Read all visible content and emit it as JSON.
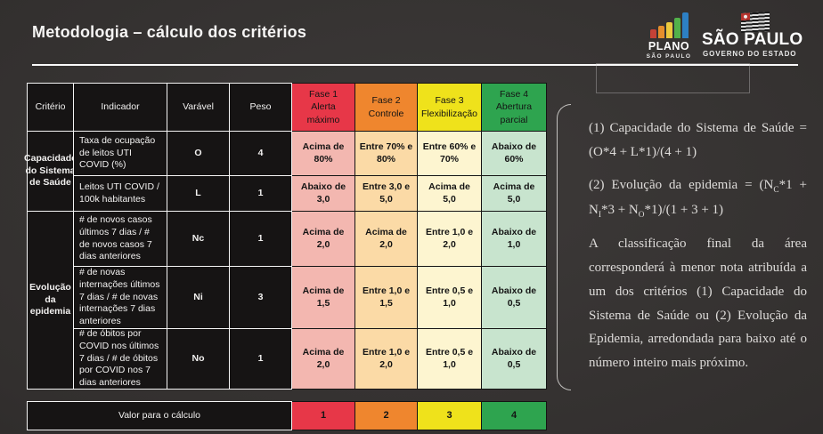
{
  "slide": {
    "title": "Metodologia – cálculo dos critérios"
  },
  "logos": {
    "plano": {
      "icon": "bar-chart-icon",
      "bar_colors": [
        "#c54237",
        "#e58e2c",
        "#ecc93d",
        "#52b14a",
        "#2d80c4"
      ],
      "line1": "PLANO",
      "line2": "SÃO PAULO"
    },
    "governo": {
      "icon": "sp-flag-icon",
      "line1": "SÃO PAULO",
      "line2": "GOVERNO DO ESTADO"
    }
  },
  "table": {
    "headers": {
      "criterio": "Critério",
      "indicador": "Indicador",
      "varavel": "Varável",
      "peso": "Peso"
    },
    "phases": [
      {
        "line1": "Fase 1",
        "line2": "Alerta máximo",
        "color": "#e73748",
        "tint": "#f3b7b0"
      },
      {
        "line1": "Fase 2",
        "line2": "Controle",
        "color": "#ef862e",
        "tint": "#fbdaa6"
      },
      {
        "line1": "Fase 3",
        "line2": "Flexibilização",
        "color": "#efe21b",
        "tint": "#fdf5d0"
      },
      {
        "line1": "Fase 4",
        "line2": "Abertura parcial",
        "color": "#2ea44f",
        "tint": "#c8e4ce"
      }
    ],
    "groups": [
      {
        "label": "Capacidade do Sistema de Saúde"
      },
      {
        "label": "Evolução da epidemia"
      }
    ],
    "rows": [
      {
        "indicator": "Taxa de ocupação de leitos UTI COVID (%)",
        "variable": "O",
        "weight": "4",
        "values": [
          "Acima de 80%",
          "Entre 70% e 80%",
          "Entre 60% e 70%",
          "Abaixo de 60%"
        ]
      },
      {
        "indicator": "Leitos UTI COVID / 100k habitantes",
        "variable": "L",
        "weight": "1",
        "values": [
          "Abaixo de 3,0",
          "Entre 3,0 e 5,0",
          "Acima de 5,0",
          "Acima de 5,0"
        ]
      },
      {
        "indicator": "# de novos casos últimos 7 dias / # de novos casos 7 dias anteriores",
        "variable": "Nc",
        "weight": "1",
        "values": [
          "Acima de 2,0",
          "Acima de 2,0",
          "Entre 1,0 e 2,0",
          "Abaixo de 1,0"
        ]
      },
      {
        "indicator": "# de novas internações últimos 7 dias / # de novas internações 7 dias anteriores",
        "variable": "Ni",
        "weight": "3",
        "values": [
          "Acima de 1,5",
          "Entre 1,0 e 1,5",
          "Entre 0,5 e 1,0",
          "Abaixo de 0,5"
        ]
      },
      {
        "indicator": "# de óbitos por COVID nos últimos 7 dias / # de óbitos por COVID nos 7 dias anteriores",
        "variable": "No",
        "weight": "1",
        "values": [
          "Acima de 2,0",
          "Entre 1,0 e 2,0",
          "Entre 0,5 e 1,0",
          "Abaixo de 0,5"
        ]
      }
    ],
    "footer": {
      "label": "Valor para o cálculo",
      "values": [
        "1",
        "2",
        "3",
        "4"
      ]
    }
  },
  "notes": {
    "formula1": "(1) Capacidade do Sistema de Saúde = (O*4 + L*1)/(4 + 1)",
    "formula2": {
      "p1": "(2) Evolução da epidemia = (N",
      "s1": "C",
      "p2": "*1 + N",
      "s2": "I",
      "p3": "*3 + N",
      "s3": "O",
      "p4": "*1)/(1 + 3 + 1)"
    },
    "paragraph": "A classificação final da área corresponderá à menor nota atribuída a um dos critérios (1) Capacidade do Sistema de Saúde ou (2) Evolução da Epidemia, arredondada para baixo até o número inteiro mais próximo."
  }
}
